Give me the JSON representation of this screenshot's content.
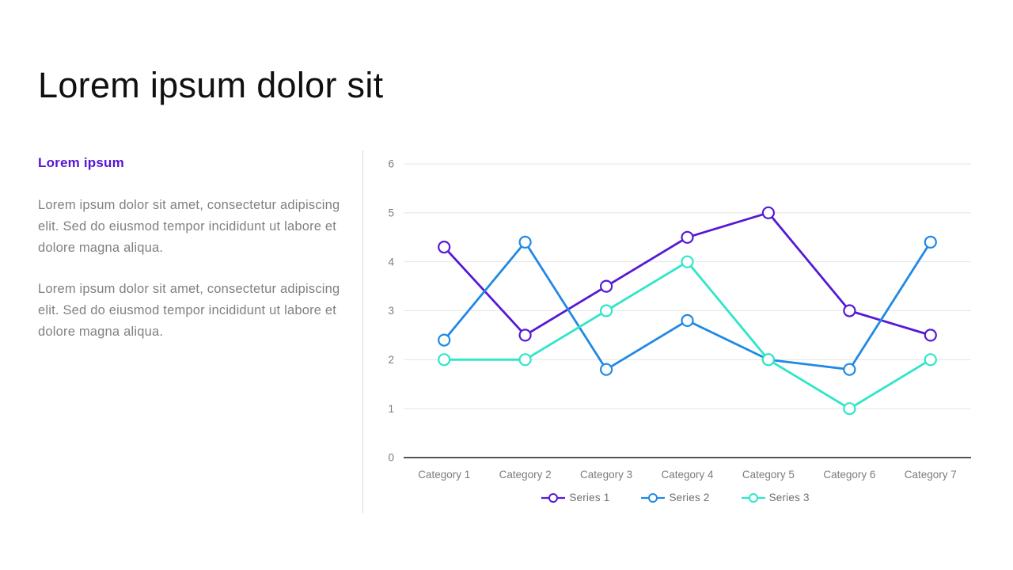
{
  "slide": {
    "title": "Lorem ipsum dolor sit",
    "left_panel": {
      "heading": "Lorem ipsum",
      "paragraphs": [
        "Lorem ipsum dolor sit amet, consectetur adipiscing elit. Sed do eiusmod tempor incididunt ut labore et dolore magna aliqua.",
        "Lorem ipsum dolor sit amet, consectetur adipiscing elit. Sed do eiusmod tempor incididunt ut labore et dolore magna aliqua."
      ]
    }
  },
  "colors": {
    "title_text": "#101010",
    "heading_accent": "#5515d4",
    "body_text": "#808080",
    "divider": "#d9d9d9",
    "gridline": "#e4e4e2",
    "axis_line": "#1f1f1f",
    "tick_label": "#7c7c7c",
    "legend_label": "#6e6e6e",
    "series1": "#5619d4",
    "series2": "#2189e4",
    "series3": "#2ee6c8"
  },
  "chart_data": {
    "type": "line",
    "title": "",
    "xlabel": "",
    "ylabel": "",
    "categories": [
      "Category 1",
      "Category 2",
      "Category 3",
      "Category 4",
      "Category 5",
      "Category 6",
      "Category 7"
    ],
    "series": [
      {
        "name": "Series 1",
        "color": "#5619d4",
        "values": [
          4.3,
          2.5,
          3.5,
          4.5,
          5.0,
          3.0,
          2.5
        ]
      },
      {
        "name": "Series 2",
        "color": "#2189e4",
        "values": [
          2.4,
          4.4,
          1.8,
          2.8,
          2.0,
          1.8,
          4.4
        ]
      },
      {
        "name": "Series 3",
        "color": "#2ee6c8",
        "values": [
          2.0,
          2.0,
          3.0,
          4.0,
          2.0,
          1.0,
          2.0
        ]
      }
    ],
    "ylim": [
      0,
      6
    ],
    "yticks": [
      0,
      1,
      2,
      3,
      4,
      5,
      6
    ],
    "grid": "horizontal",
    "marker": "open-circle",
    "legend_position": "bottom"
  }
}
